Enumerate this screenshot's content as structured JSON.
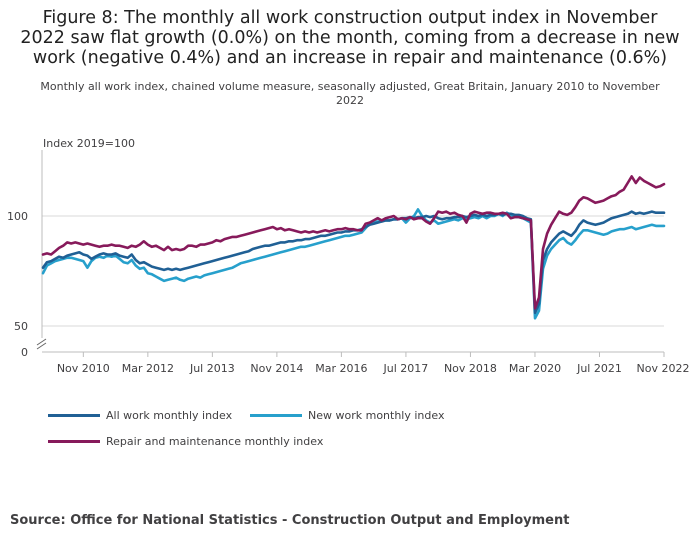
{
  "title": "Figure 8: The monthly all work construction output index in November 2022 saw flat growth (0.0%) on the month, coming from a decrease in new work (negative 0.4%) and an increase in repair and maintenance (0.6%)",
  "subtitle": "Monthly all work index, chained volume measure, seasonally adjusted, Great Britain, January 2010 to November 2022",
  "source": "Source: Office for National Statistics - Construction Output and Employment",
  "chart_data": {
    "type": "line",
    "ylabel": "Index 2019=100",
    "xlabel": "",
    "ylim": [
      50,
      130
    ],
    "y_ticks": [
      50,
      100
    ],
    "y_zero_label": "0",
    "axis_break": true,
    "x_start": "2010-01",
    "x_end": "2022-11",
    "x_ticks": [
      {
        "label": "Nov 2010",
        "index": 10
      },
      {
        "label": "Mar 2012",
        "index": 26
      },
      {
        "label": "Jul 2013",
        "index": 42
      },
      {
        "label": "Nov 2014",
        "index": 58
      },
      {
        "label": "Mar 2016",
        "index": 74
      },
      {
        "label": "Jul 2017",
        "index": 90
      },
      {
        "label": "Nov 2018",
        "index": 106
      },
      {
        "label": "Mar 2020",
        "index": 122
      },
      {
        "label": "Jul 2021",
        "index": 138
      },
      {
        "label": "Nov 2022",
        "index": 154
      }
    ],
    "series": [
      {
        "name": "All work monthly index",
        "color": "#206095",
        "values": [
          76.5,
          79.0,
          79.5,
          80.5,
          81.5,
          81.0,
          82.0,
          82.5,
          83.0,
          83.5,
          82.5,
          82.0,
          80.5,
          81.5,
          82.5,
          83.0,
          82.5,
          82.5,
          83.0,
          82.0,
          81.5,
          81.0,
          82.5,
          80.0,
          78.5,
          79.0,
          78.0,
          77.0,
          76.5,
          76.0,
          75.5,
          76.0,
          75.5,
          76.0,
          75.5,
          76.0,
          76.5,
          77.0,
          77.5,
          78.0,
          78.5,
          79.0,
          79.5,
          80.0,
          80.5,
          81.0,
          81.5,
          82.0,
          82.5,
          83.0,
          83.5,
          84.0,
          85.0,
          85.5,
          86.0,
          86.5,
          86.5,
          87.0,
          87.5,
          88.0,
          88.0,
          88.5,
          88.5,
          89.0,
          89.0,
          89.5,
          89.5,
          90.0,
          90.5,
          91.0,
          91.0,
          91.5,
          92.0,
          92.5,
          92.5,
          93.0,
          93.0,
          93.5,
          93.5,
          94.0,
          95.0,
          96.0,
          96.5,
          97.0,
          97.5,
          98.0,
          98.0,
          98.5,
          98.5,
          99.0,
          99.0,
          99.5,
          99.0,
          99.5,
          99.5,
          100.0,
          99.5,
          100.0,
          99.0,
          98.5,
          99.0,
          99.0,
          99.5,
          99.5,
          100.0,
          99.5,
          100.0,
          100.5,
          100.0,
          100.5,
          100.0,
          100.5,
          100.5,
          101.0,
          100.5,
          101.0,
          101.0,
          100.5,
          100.5,
          100.0,
          99.0,
          98.5,
          56.0,
          60.0,
          80.0,
          85.0,
          88.0,
          90.0,
          92.0,
          93.0,
          92.0,
          91.0,
          93.0,
          96.0,
          98.0,
          97.0,
          96.5,
          96.0,
          96.5,
          97.0,
          98.0,
          99.0,
          99.5,
          100.0,
          100.5,
          101.0,
          102.0,
          101.0,
          101.5,
          101.0,
          101.5,
          102.0,
          101.5,
          101.5,
          101.5
        ]
      },
      {
        "name": "New work monthly index",
        "color": "#27a0cc",
        "values": [
          74.0,
          77.5,
          78.5,
          79.5,
          80.0,
          80.5,
          81.0,
          81.0,
          80.5,
          80.0,
          79.5,
          76.5,
          79.5,
          81.0,
          81.5,
          81.0,
          82.0,
          81.5,
          82.0,
          80.5,
          79.0,
          78.5,
          80.0,
          77.5,
          76.0,
          76.5,
          74.0,
          73.5,
          72.5,
          71.5,
          70.5,
          71.0,
          71.5,
          72.0,
          71.0,
          70.5,
          71.5,
          72.0,
          72.5,
          72.0,
          73.0,
          73.5,
          74.0,
          74.5,
          75.0,
          75.5,
          76.0,
          76.5,
          77.5,
          78.5,
          79.0,
          79.5,
          80.0,
          80.5,
          81.0,
          81.5,
          82.0,
          82.5,
          83.0,
          83.5,
          84.0,
          84.5,
          85.0,
          85.5,
          86.0,
          86.0,
          86.5,
          87.0,
          87.5,
          88.0,
          88.5,
          89.0,
          89.5,
          90.0,
          90.5,
          91.0,
          91.0,
          91.5,
          92.0,
          92.5,
          94.5,
          96.5,
          97.0,
          97.5,
          97.5,
          98.0,
          98.0,
          98.5,
          98.5,
          99.0,
          97.0,
          99.0,
          100.0,
          103.0,
          100.0,
          98.0,
          97.0,
          98.0,
          96.5,
          97.0,
          97.5,
          98.0,
          98.5,
          98.0,
          99.0,
          98.5,
          99.0,
          99.5,
          99.0,
          100.0,
          99.0,
          100.0,
          100.0,
          101.0,
          100.0,
          101.5,
          100.5,
          99.5,
          99.5,
          99.0,
          98.0,
          97.0,
          53.5,
          57.0,
          76.0,
          82.0,
          85.0,
          87.0,
          89.0,
          90.0,
          88.0,
          87.0,
          89.0,
          91.5,
          93.5,
          93.5,
          93.0,
          92.5,
          92.0,
          91.5,
          92.0,
          93.0,
          93.5,
          94.0,
          94.0,
          94.5,
          95.0,
          94.0,
          94.5,
          95.0,
          95.5,
          96.0,
          95.5,
          95.5,
          95.5
        ]
      },
      {
        "name": "Repair and maintenance monthly index",
        "color": "#871a5b",
        "values": [
          82.5,
          83.0,
          82.5,
          84.0,
          85.5,
          86.5,
          88.0,
          87.5,
          88.0,
          87.5,
          87.0,
          87.5,
          87.0,
          86.5,
          86.0,
          86.5,
          86.5,
          87.0,
          86.5,
          86.5,
          86.0,
          85.5,
          86.5,
          86.0,
          87.0,
          88.5,
          87.0,
          86.0,
          86.5,
          85.5,
          84.5,
          86.0,
          84.5,
          85.0,
          84.5,
          85.0,
          86.5,
          86.5,
          86.0,
          87.0,
          87.0,
          87.5,
          88.0,
          89.0,
          88.5,
          89.5,
          90.0,
          90.5,
          90.5,
          91.0,
          91.5,
          92.0,
          92.5,
          93.0,
          93.5,
          94.0,
          94.5,
          95.0,
          94.0,
          94.5,
          93.5,
          94.0,
          93.5,
          93.0,
          92.5,
          93.0,
          92.5,
          93.0,
          92.5,
          93.0,
          93.5,
          93.0,
          93.5,
          94.0,
          94.0,
          94.5,
          94.0,
          94.0,
          93.5,
          93.5,
          96.5,
          97.0,
          98.0,
          99.0,
          98.0,
          99.0,
          99.5,
          100.0,
          98.5,
          99.0,
          98.5,
          99.5,
          98.5,
          99.0,
          99.0,
          97.5,
          96.5,
          99.0,
          102.0,
          101.5,
          102.0,
          101.0,
          101.5,
          100.5,
          100.0,
          97.0,
          101.0,
          102.0,
          101.5,
          101.0,
          101.5,
          101.5,
          101.0,
          101.0,
          101.5,
          101.0,
          99.0,
          99.5,
          99.5,
          99.0,
          98.5,
          98.0,
          58.0,
          63.0,
          85.0,
          92.0,
          96.0,
          99.0,
          102.0,
          101.0,
          100.5,
          101.5,
          104.0,
          107.0,
          108.5,
          108.0,
          107.0,
          106.0,
          106.5,
          107.0,
          108.0,
          109.0,
          109.5,
          111.0,
          112.0,
          115.0,
          118.0,
          115.0,
          117.5,
          116.0,
          115.0,
          114.0,
          113.0,
          113.5,
          114.5
        ]
      }
    ]
  }
}
